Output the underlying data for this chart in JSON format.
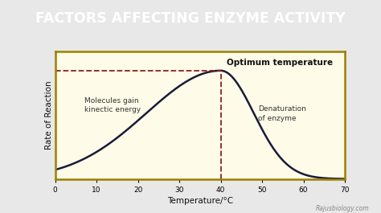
{
  "title": "FACTORS AFFECTING ENZYME ACTIVITY",
  "title_bg_color": "#F0325A",
  "title_text_color": "#FFFFFF",
  "fig_bg_color": "#E8E8E8",
  "plot_bg_color": "#FEFBE8",
  "plot_border_color": "#9B8000",
  "xlabel": "Temperature/°C",
  "ylabel": "Rate of Reaction",
  "xlim": [
    0,
    70
  ],
  "ylim": [
    0,
    1.18
  ],
  "xticks": [
    0,
    10,
    20,
    30,
    40,
    50,
    60,
    70
  ],
  "optimum_temp": 40,
  "curve_color": "#1a1a3a",
  "dashed_line_color": "#8B2020",
  "optimum_label": "Optimum temperature",
  "left_annotation": "Molecules gain\nkinectic energy",
  "right_annotation": "Denaturation\nof enzyme",
  "watermark": "Rajusbiology.com"
}
